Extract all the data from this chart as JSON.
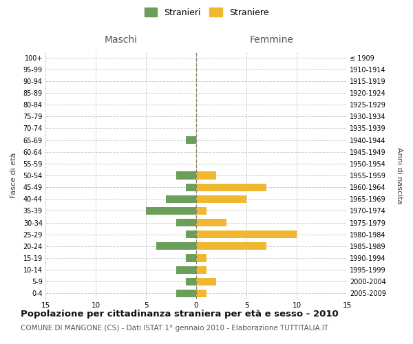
{
  "age_groups": [
    "0-4",
    "5-9",
    "10-14",
    "15-19",
    "20-24",
    "25-29",
    "30-34",
    "35-39",
    "40-44",
    "45-49",
    "50-54",
    "55-59",
    "60-64",
    "65-69",
    "70-74",
    "75-79",
    "80-84",
    "85-89",
    "90-94",
    "95-99",
    "100+"
  ],
  "birth_years": [
    "2005-2009",
    "2000-2004",
    "1995-1999",
    "1990-1994",
    "1985-1989",
    "1980-1984",
    "1975-1979",
    "1970-1974",
    "1965-1969",
    "1960-1964",
    "1955-1959",
    "1950-1954",
    "1945-1949",
    "1940-1944",
    "1935-1939",
    "1930-1934",
    "1925-1929",
    "1920-1924",
    "1915-1919",
    "1910-1914",
    "≤ 1909"
  ],
  "stranieri_males": [
    2,
    1,
    2,
    1,
    4,
    1,
    2,
    5,
    3,
    1,
    2,
    0,
    0,
    1,
    0,
    0,
    0,
    0,
    0,
    0,
    0
  ],
  "straniere_females": [
    1,
    2,
    1,
    1,
    7,
    10,
    3,
    1,
    5,
    7,
    2,
    0,
    0,
    0,
    0,
    0,
    0,
    0,
    0,
    0,
    0
  ],
  "color_males": "#6a9e5a",
  "color_females": "#f0b830",
  "xlim": 15,
  "title": "Popolazione per cittadinanza straniera per età e sesso - 2010",
  "subtitle": "COMUNE DI MANGONE (CS) - Dati ISTAT 1° gennaio 2010 - Elaborazione TUTTITALIA.IT",
  "ylabel_left": "Fasce di età",
  "ylabel_right": "Anni di nascita",
  "header_left": "Maschi",
  "header_right": "Femmine",
  "legend_male": "Stranieri",
  "legend_female": "Straniere",
  "bg_color": "#ffffff",
  "grid_color": "#cccccc",
  "center_line_color": "#888866",
  "title_fontsize": 9.5,
  "subtitle_fontsize": 7.5
}
